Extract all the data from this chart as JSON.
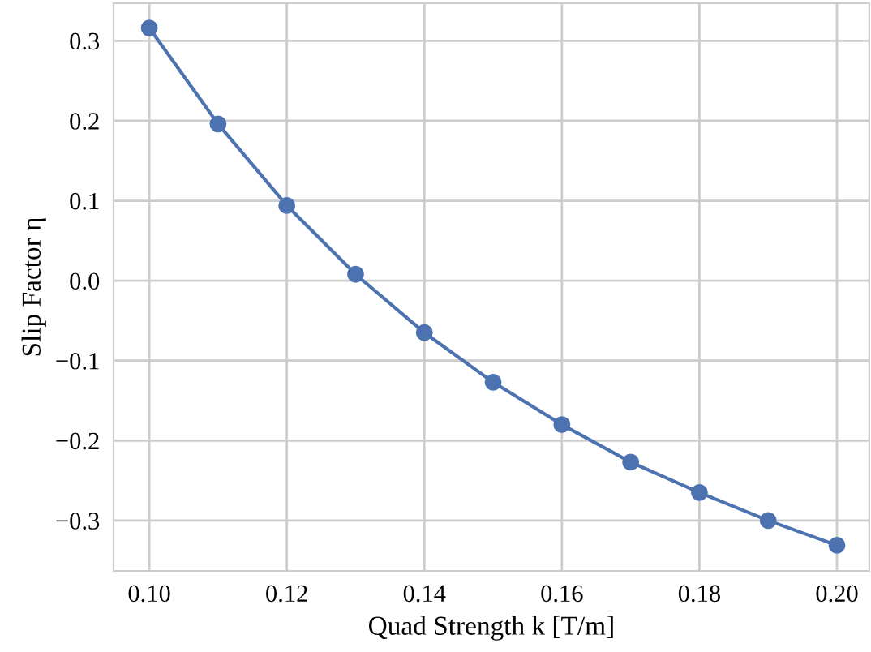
{
  "chart_data": {
    "type": "line",
    "xlabel": "Quad Strength k [T/m]",
    "ylabel": "Slip Factor η",
    "x": [
      0.1,
      0.11,
      0.12,
      0.13,
      0.14,
      0.15,
      0.16,
      0.17,
      0.18,
      0.19,
      0.2
    ],
    "series": [
      {
        "color": "#4c72b0",
        "values": [
          0.316,
          0.196,
          0.094,
          0.008,
          -0.065,
          -0.127,
          -0.18,
          -0.227,
          -0.265,
          -0.3,
          -0.331
        ]
      }
    ],
    "marker": "circle",
    "line_style": "solid",
    "grid": true,
    "xlim": [
      0.0948,
      0.2047
    ],
    "ylim": [
      -0.363,
      0.347
    ],
    "xticks": [
      {
        "value": 0.1,
        "label": "0.10"
      },
      {
        "value": 0.12,
        "label": "0.12"
      },
      {
        "value": 0.14,
        "label": "0.14"
      },
      {
        "value": 0.16,
        "label": "0.16"
      },
      {
        "value": 0.18,
        "label": "0.18"
      },
      {
        "value": 0.2,
        "label": "0.20"
      }
    ],
    "yticks": [
      {
        "value": -0.3,
        "label": "−0.3"
      },
      {
        "value": -0.2,
        "label": "−0.2"
      },
      {
        "value": -0.1,
        "label": "−0.1"
      },
      {
        "value": 0.0,
        "label": "0.0"
      },
      0.1,
      0.2,
      0.3
    ]
  }
}
